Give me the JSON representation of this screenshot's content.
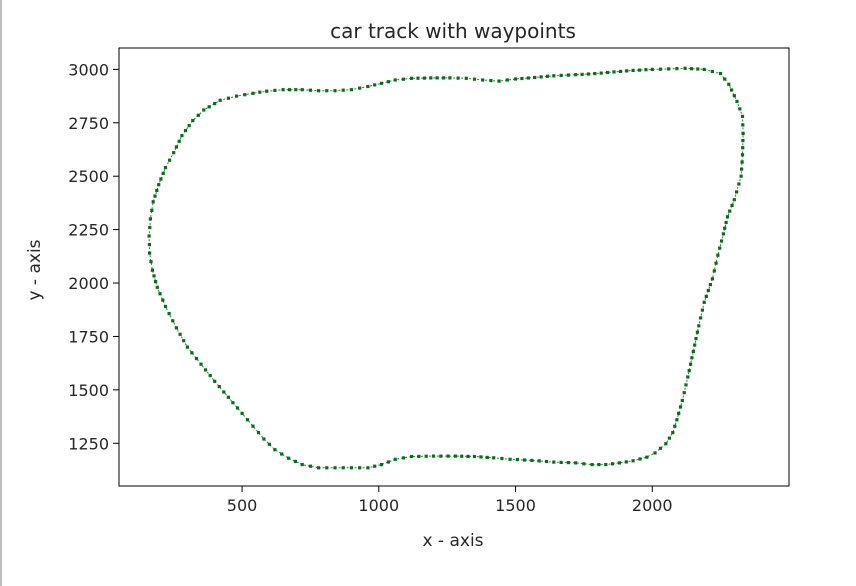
{
  "chart_data": {
    "type": "scatter",
    "title": "car track with waypoints",
    "xlabel": "x - axis",
    "ylabel": "y - axis",
    "xlim": [
      50,
      2500
    ],
    "ylim": [
      1050,
      3100
    ],
    "xticks": [
      500,
      1000,
      1500,
      2000
    ],
    "yticks": [
      1250,
      1500,
      1750,
      2000,
      2250,
      2500,
      2750,
      3000
    ],
    "grid": false,
    "colors": {
      "point": "#0b6b1a",
      "line": "#1f8a2f",
      "frame": "#000000"
    },
    "series": [
      {
        "values": [
          [
            780,
            1135
          ],
          [
            840,
            1135
          ],
          [
            900,
            1135
          ],
          [
            960,
            1135
          ],
          [
            1010,
            1150
          ],
          [
            1060,
            1175
          ],
          [
            1120,
            1188
          ],
          [
            1200,
            1190
          ],
          [
            1280,
            1190
          ],
          [
            1350,
            1188
          ],
          [
            1420,
            1182
          ],
          [
            1480,
            1175
          ],
          [
            1560,
            1170
          ],
          [
            1640,
            1162
          ],
          [
            1720,
            1158
          ],
          [
            1780,
            1150
          ],
          [
            1830,
            1150
          ],
          [
            1880,
            1158
          ],
          [
            1930,
            1168
          ],
          [
            1980,
            1185
          ],
          [
            2010,
            1205
          ],
          [
            2050,
            1248
          ],
          [
            2075,
            1300
          ],
          [
            2090,
            1360
          ],
          [
            2110,
            1450
          ],
          [
            2130,
            1560
          ],
          [
            2150,
            1680
          ],
          [
            2170,
            1800
          ],
          [
            2190,
            1910
          ],
          [
            2220,
            2020
          ],
          [
            2240,
            2130
          ],
          [
            2260,
            2230
          ],
          [
            2275,
            2310
          ],
          [
            2300,
            2390
          ],
          [
            2325,
            2500
          ],
          [
            2330,
            2600
          ],
          [
            2332,
            2700
          ],
          [
            2330,
            2780
          ],
          [
            2310,
            2850
          ],
          [
            2280,
            2930
          ],
          [
            2250,
            2980
          ],
          [
            2190,
            3000
          ],
          [
            2120,
            3005
          ],
          [
            2060,
            3002
          ],
          [
            2000,
            3000
          ],
          [
            1930,
            2995
          ],
          [
            1860,
            2988
          ],
          [
            1790,
            2980
          ],
          [
            1720,
            2975
          ],
          [
            1640,
            2970
          ],
          [
            1570,
            2962
          ],
          [
            1500,
            2955
          ],
          [
            1440,
            2945
          ],
          [
            1380,
            2950
          ],
          [
            1320,
            2958
          ],
          [
            1260,
            2960
          ],
          [
            1190,
            2960
          ],
          [
            1120,
            2958
          ],
          [
            1060,
            2950
          ],
          [
            1010,
            2935
          ],
          [
            960,
            2920
          ],
          [
            900,
            2905
          ],
          [
            840,
            2900
          ],
          [
            780,
            2900
          ],
          [
            720,
            2905
          ],
          [
            650,
            2905
          ],
          [
            590,
            2898
          ],
          [
            540,
            2888
          ],
          [
            480,
            2875
          ],
          [
            420,
            2855
          ],
          [
            360,
            2810
          ],
          [
            320,
            2760
          ],
          [
            280,
            2690
          ],
          [
            250,
            2610
          ],
          [
            220,
            2540
          ],
          [
            195,
            2460
          ],
          [
            175,
            2380
          ],
          [
            165,
            2300
          ],
          [
            160,
            2220
          ],
          [
            162,
            2140
          ],
          [
            172,
            2060
          ],
          [
            190,
            1980
          ],
          [
            220,
            1890
          ],
          [
            260,
            1790
          ],
          [
            300,
            1700
          ],
          [
            350,
            1620
          ],
          [
            400,
            1540
          ],
          [
            450,
            1465
          ],
          [
            500,
            1390
          ],
          [
            540,
            1330
          ],
          [
            580,
            1270
          ],
          [
            620,
            1220
          ],
          [
            670,
            1180
          ],
          [
            720,
            1150
          ],
          [
            780,
            1135
          ]
        ]
      }
    ]
  }
}
